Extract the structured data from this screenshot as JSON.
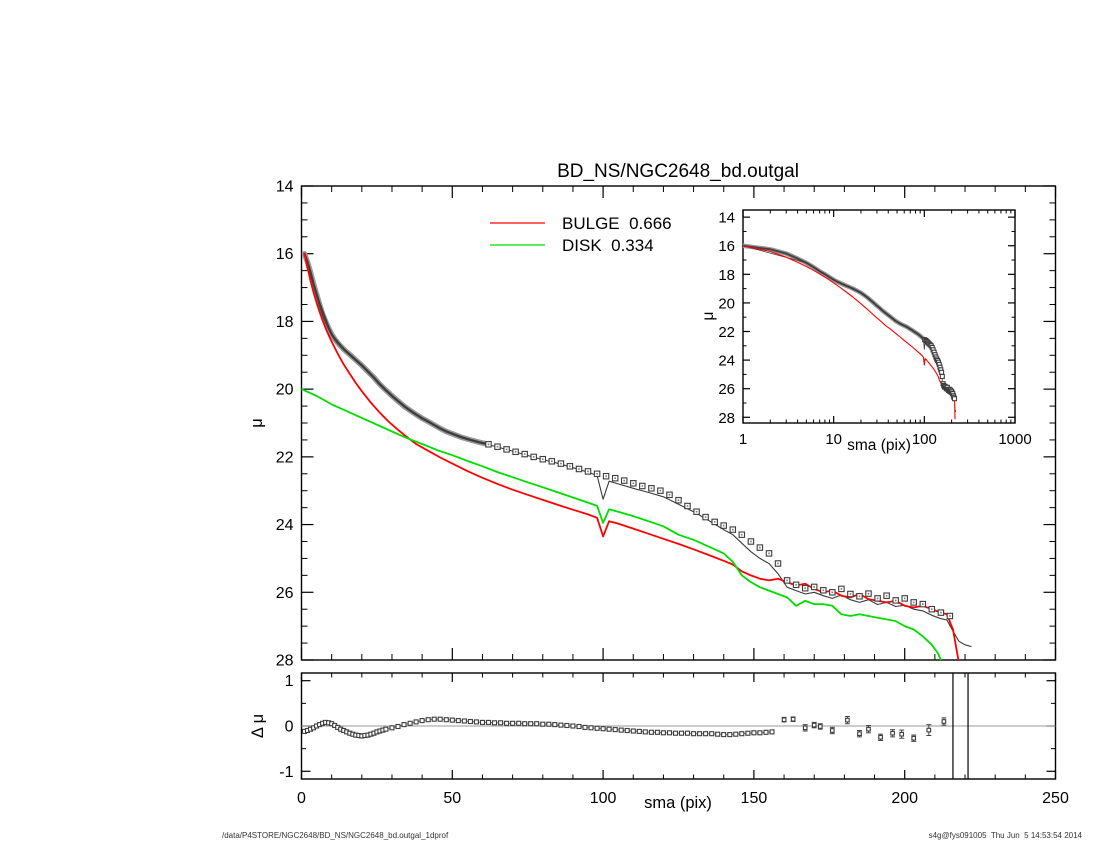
{
  "title": "BD_NS/NGC2648_bd.outgal",
  "legend": {
    "bulge_label": "BULGE  0.666",
    "disk_label": "DISK  0.334",
    "bulge_color": "#ff0000",
    "disk_color": "#00dd00"
  },
  "footer": {
    "left": "/data/P4STORE/NGC2648/BD_NS/NGC2648_bd.outgal_1dprof",
    "right": "s4g@fys091005  Thu Jun  5 14:53:54 2014"
  },
  "chart_data": [
    {
      "id": "main",
      "type": "scatter",
      "title": "BD_NS/NGC2648_bd.outgal",
      "xlabel": "",
      "ylabel": "μ",
      "xlim": [
        0,
        250
      ],
      "ylim": [
        28,
        14
      ],
      "x_ticks": [
        0,
        50,
        100,
        150,
        200,
        250
      ],
      "x_minor": 10,
      "y_ticks": [
        14,
        16,
        18,
        20,
        22,
        24,
        26,
        28
      ],
      "y_minor": 0.5,
      "grid": false,
      "legend_position": "upper-left-inside",
      "series": [
        {
          "name": "data",
          "marker": "open-square",
          "color": "#555555",
          "x": [
            1,
            2,
            3,
            4,
            5,
            6,
            7,
            8,
            9,
            10,
            11,
            12,
            13,
            14,
            15,
            16,
            17,
            18,
            19,
            20,
            22,
            24,
            26,
            28,
            30,
            32,
            34,
            36,
            38,
            40,
            42,
            44,
            46,
            48,
            50,
            53,
            56,
            59,
            62,
            65,
            68,
            71,
            74,
            77,
            80,
            83,
            86,
            89,
            92,
            95,
            98,
            101,
            104,
            107,
            110,
            113,
            116,
            119,
            122,
            125,
            128,
            131,
            134,
            137,
            140,
            143,
            146,
            149,
            152,
            155,
            158,
            161,
            164,
            167,
            170,
            173,
            176,
            179,
            182,
            185,
            188,
            191,
            194,
            197,
            200,
            203,
            206,
            209,
            212,
            215
          ],
          "y": [
            16.0,
            16.25,
            16.55,
            16.9,
            17.2,
            17.5,
            17.78,
            18.0,
            18.2,
            18.38,
            18.52,
            18.63,
            18.73,
            18.82,
            18.9,
            18.98,
            19.06,
            19.14,
            19.22,
            19.3,
            19.48,
            19.66,
            19.86,
            20.03,
            20.2,
            20.35,
            20.5,
            20.63,
            20.75,
            20.86,
            20.96,
            21.06,
            21.16,
            21.25,
            21.32,
            21.42,
            21.5,
            21.57,
            21.63,
            21.7,
            21.78,
            21.85,
            21.92,
            22.0,
            22.07,
            22.13,
            22.2,
            22.28,
            22.36,
            22.43,
            22.5,
            22.57,
            22.63,
            22.7,
            22.78,
            22.86,
            22.93,
            23.0,
            23.12,
            23.28,
            23.45,
            23.62,
            23.78,
            23.92,
            24.03,
            24.15,
            24.3,
            24.5,
            24.68,
            24.85,
            25.15,
            25.65,
            25.78,
            25.88,
            25.84,
            25.94,
            26.0,
            25.9,
            26.05,
            26.12,
            26.04,
            26.18,
            26.1,
            26.24,
            26.18,
            26.3,
            26.35,
            26.5,
            26.6,
            26.7
          ]
        },
        {
          "name": "model",
          "type": "line",
          "color": "#3a3a3a",
          "x": [
            1,
            5,
            10,
            15,
            20,
            25,
            30,
            35,
            40,
            45,
            50,
            55,
            60,
            65,
            70,
            75,
            80,
            85,
            90,
            95,
            98,
            100,
            102,
            105,
            110,
            115,
            120,
            125,
            130,
            135,
            140,
            143,
            146,
            149,
            152,
            155,
            158,
            161,
            164,
            167,
            170,
            173,
            176,
            179,
            182,
            185,
            188,
            191,
            194,
            197,
            200,
            203,
            206,
            209,
            212,
            214,
            216,
            218,
            220,
            222
          ],
          "y": [
            16.0,
            17.2,
            18.38,
            18.9,
            19.3,
            19.76,
            20.2,
            20.57,
            20.86,
            21.11,
            21.32,
            21.47,
            21.6,
            21.71,
            21.83,
            21.96,
            22.08,
            22.19,
            22.32,
            22.45,
            22.55,
            23.25,
            22.72,
            22.8,
            22.93,
            23.05,
            23.18,
            23.4,
            23.62,
            23.88,
            24.15,
            24.3,
            24.55,
            24.8,
            25.0,
            25.15,
            25.45,
            25.85,
            25.95,
            26.05,
            26.0,
            26.1,
            26.18,
            26.08,
            26.22,
            26.3,
            26.22,
            26.36,
            26.3,
            26.42,
            26.38,
            26.5,
            26.55,
            26.68,
            26.78,
            26.82,
            27.15,
            27.45,
            27.55,
            27.6
          ]
        },
        {
          "name": "bulge",
          "type": "line",
          "label": "BULGE  0.666",
          "color": "#ff0000",
          "x": [
            1,
            2,
            3,
            4,
            5,
            6,
            7,
            8,
            9,
            10,
            12,
            14,
            16,
            18,
            20,
            23,
            26,
            29,
            32,
            35,
            38,
            42,
            46,
            50,
            55,
            60,
            65,
            70,
            75,
            80,
            85,
            90,
            95,
            98,
            100,
            102,
            105,
            110,
            115,
            120,
            125,
            130,
            135,
            140,
            143,
            146,
            149,
            152,
            155,
            158,
            161,
            164,
            167,
            170,
            173,
            176,
            179,
            182,
            185,
            188,
            191,
            194,
            197,
            200,
            203,
            206,
            209,
            212,
            214,
            216,
            218
          ],
          "y": [
            16.0,
            16.4,
            16.8,
            17.15,
            17.45,
            17.72,
            17.97,
            18.2,
            18.4,
            18.6,
            18.95,
            19.27,
            19.55,
            19.82,
            20.06,
            20.4,
            20.7,
            20.97,
            21.2,
            21.42,
            21.62,
            21.82,
            22.02,
            22.2,
            22.42,
            22.62,
            22.8,
            22.97,
            23.12,
            23.27,
            23.42,
            23.56,
            23.7,
            23.8,
            24.35,
            23.9,
            23.97,
            24.12,
            24.27,
            24.42,
            24.57,
            24.73,
            24.9,
            25.07,
            25.18,
            25.38,
            25.5,
            25.6,
            25.65,
            25.6,
            25.7,
            25.8,
            25.75,
            25.9,
            26.0,
            25.95,
            26.1,
            26.15,
            26.05,
            26.2,
            26.25,
            26.3,
            26.25,
            26.4,
            26.45,
            26.4,
            26.5,
            26.6,
            26.65,
            27.1,
            28.1
          ]
        },
        {
          "name": "disk",
          "type": "line",
          "label": "DISK  0.334",
          "color": "#00dd00",
          "x": [
            0,
            5,
            10,
            15,
            20,
            25,
            30,
            35,
            40,
            45,
            50,
            55,
            60,
            65,
            70,
            75,
            80,
            85,
            90,
            95,
            98,
            100,
            102,
            105,
            110,
            115,
            120,
            125,
            130,
            135,
            140,
            143,
            146,
            149,
            152,
            155,
            158,
            161,
            164,
            167,
            170,
            173,
            176,
            179,
            182,
            185,
            188,
            191,
            194,
            197,
            200,
            203,
            206,
            209,
            211,
            213
          ],
          "y": [
            20.0,
            20.2,
            20.45,
            20.65,
            20.85,
            21.05,
            21.25,
            21.45,
            21.62,
            21.8,
            21.95,
            22.12,
            22.28,
            22.45,
            22.6,
            22.75,
            22.9,
            23.05,
            23.2,
            23.35,
            23.45,
            23.95,
            23.55,
            23.62,
            23.75,
            23.9,
            24.05,
            24.3,
            24.45,
            24.65,
            24.85,
            25.1,
            25.5,
            25.7,
            25.85,
            25.95,
            26.05,
            26.15,
            26.4,
            26.25,
            26.35,
            26.35,
            26.4,
            26.65,
            26.7,
            26.65,
            26.7,
            26.75,
            26.8,
            26.85,
            27.0,
            27.1,
            27.3,
            27.55,
            27.8,
            28.2
          ]
        }
      ]
    },
    {
      "id": "inset",
      "type": "scatter",
      "xlabel": "sma (pix)",
      "ylabel": "μ",
      "xscale": "log",
      "xlim": [
        1,
        1000
      ],
      "ylim": [
        28.4,
        13.5
      ],
      "x_ticks": [
        1,
        10,
        100,
        1000
      ],
      "y_ticks": [
        14,
        16,
        18,
        20,
        22,
        24,
        26,
        28
      ],
      "y_minor": 1,
      "grid": false,
      "series_from": "main"
    },
    {
      "id": "residual",
      "type": "scatter",
      "xlabel": "sma (pix)",
      "ylabel": "Δ μ",
      "xlim": [
        0,
        250
      ],
      "ylim": [
        -1.17,
        1.17
      ],
      "x_ticks": [
        0,
        50,
        100,
        150,
        200,
        250
      ],
      "x_minor": 10,
      "y_ticks": [
        -1,
        0,
        1
      ],
      "y_minor": 0.5,
      "hline": 0,
      "vlines": [
        216,
        221
      ],
      "series": [
        {
          "name": "residual-dense",
          "marker": "small-square",
          "color": "#444444",
          "x": [
            1,
            2,
            3,
            4,
            5,
            6,
            7,
            8,
            9,
            10,
            11,
            12,
            13,
            14,
            15,
            16,
            17,
            18,
            19,
            20,
            21,
            22,
            23,
            24,
            25,
            26,
            27,
            28,
            30,
            32,
            34,
            36,
            38,
            40,
            42,
            44,
            46,
            48,
            50,
            52,
            54,
            56,
            58,
            60,
            62,
            64,
            66,
            68,
            70,
            72,
            74,
            76,
            78,
            80,
            82,
            84,
            86,
            88,
            90,
            92,
            94,
            96,
            98,
            100,
            102,
            104,
            106,
            108,
            110,
            112,
            114,
            116,
            118,
            120,
            122,
            124,
            126,
            128,
            130,
            132,
            134,
            136,
            138,
            140,
            142,
            144,
            146,
            148,
            150,
            152,
            154,
            156
          ],
          "y": [
            -0.12,
            -0.1,
            -0.07,
            -0.04,
            0.0,
            0.03,
            0.06,
            0.08,
            0.07,
            0.05,
            0.01,
            -0.03,
            -0.07,
            -0.1,
            -0.13,
            -0.16,
            -0.18,
            -0.2,
            -0.21,
            -0.22,
            -0.21,
            -0.2,
            -0.18,
            -0.16,
            -0.13,
            -0.11,
            -0.09,
            -0.07,
            -0.04,
            -0.01,
            0.03,
            0.06,
            0.09,
            0.12,
            0.14,
            0.15,
            0.15,
            0.14,
            0.13,
            0.12,
            0.11,
            0.1,
            0.09,
            0.08,
            0.08,
            0.07,
            0.07,
            0.06,
            0.06,
            0.06,
            0.05,
            0.05,
            0.05,
            0.04,
            0.04,
            0.03,
            0.02,
            0.01,
            0.0,
            -0.01,
            -0.03,
            -0.04,
            -0.05,
            -0.06,
            -0.07,
            -0.08,
            -0.09,
            -0.1,
            -0.11,
            -0.12,
            -0.13,
            -0.14,
            -0.14,
            -0.15,
            -0.15,
            -0.16,
            -0.16,
            -0.16,
            -0.17,
            -0.17,
            -0.17,
            -0.17,
            -0.18,
            -0.19,
            -0.19,
            -0.18,
            -0.17,
            -0.16,
            -0.15,
            -0.15,
            -0.14,
            -0.13
          ]
        },
        {
          "name": "residual-outer",
          "marker": "small-square-errbar",
          "color": "#444444",
          "x": [
            160,
            163,
            167,
            170,
            172,
            176,
            181,
            185,
            188,
            192,
            196,
            199,
            203,
            208,
            213
          ],
          "y": [
            0.14,
            0.15,
            -0.04,
            0.02,
            -0.01,
            -0.1,
            0.13,
            -0.17,
            -0.07,
            -0.25,
            -0.16,
            -0.18,
            -0.27,
            -0.09,
            0.1
          ],
          "yerr": [
            0.05,
            0.05,
            0.07,
            0.06,
            0.06,
            0.07,
            0.08,
            0.07,
            0.08,
            0.07,
            0.08,
            0.09,
            0.07,
            0.12,
            0.08
          ]
        }
      ]
    }
  ]
}
